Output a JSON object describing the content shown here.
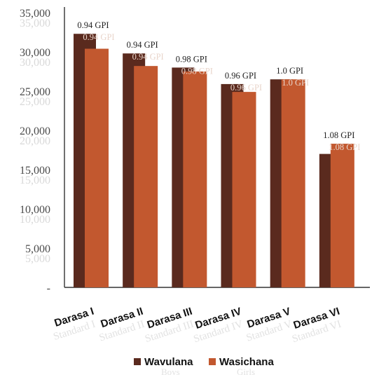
{
  "chart_data": {
    "type": "bar",
    "categories": [
      "Darasa I",
      "Darasa II",
      "Darasa III",
      "Darasa IV",
      "Darasa V",
      "Darasa VI"
    ],
    "ghost_categories": [
      "Standard I",
      "Standard II",
      "Standard III",
      "Standard IV",
      "Standard V",
      "Standard VI"
    ],
    "series": [
      {
        "name": "Wavulana",
        "ghost_name": "Boys",
        "color": "#5a2a1e",
        "values": [
          32300,
          29800,
          28000,
          25900,
          26500,
          17000
        ]
      },
      {
        "name": "Wasichana",
        "ghost_name": "Girls",
        "color": "#c2582f",
        "values": [
          30400,
          28200,
          27500,
          24900,
          26500,
          18300
        ]
      }
    ],
    "annotations": [
      "0.94 GPI",
      "0.94 GPI",
      "0.98 GPI",
      "0.96 GPI",
      "1.0 GPI",
      "1.08 GPI"
    ],
    "y_ticks": [
      "-",
      "5,000",
      "10,000",
      "15,000",
      "20,000",
      "25,000",
      "30,000",
      "35,000"
    ],
    "ylim": [
      0,
      35000
    ],
    "legend_position": "bottom-center",
    "grid": false
  }
}
